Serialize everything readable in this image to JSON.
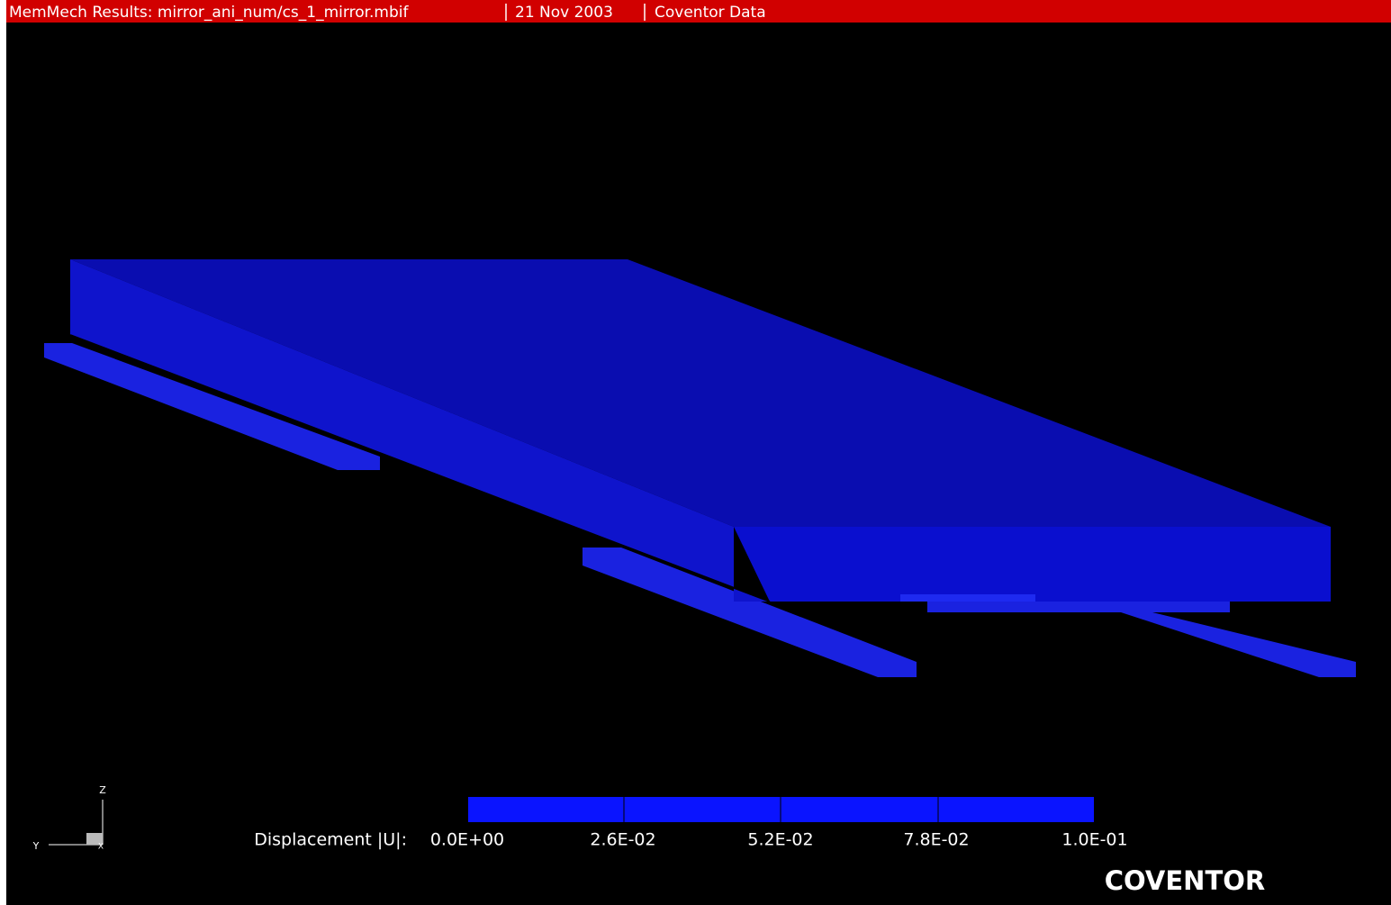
{
  "header": {
    "title": "MemMech Results: mirror_ani_num/cs_1_mirror.mbif",
    "date": "21 Nov 2003",
    "source": "Coventor Data"
  },
  "legend": {
    "label": "Displacement |U|:",
    "ticks": [
      "0.0E+00",
      "2.6E-02",
      "5.2E-02",
      "7.8E-02",
      "1.0E-01"
    ]
  },
  "axes": {
    "z": "Z",
    "y": "Y",
    "x": "X"
  },
  "logo": "COVENTOR"
}
